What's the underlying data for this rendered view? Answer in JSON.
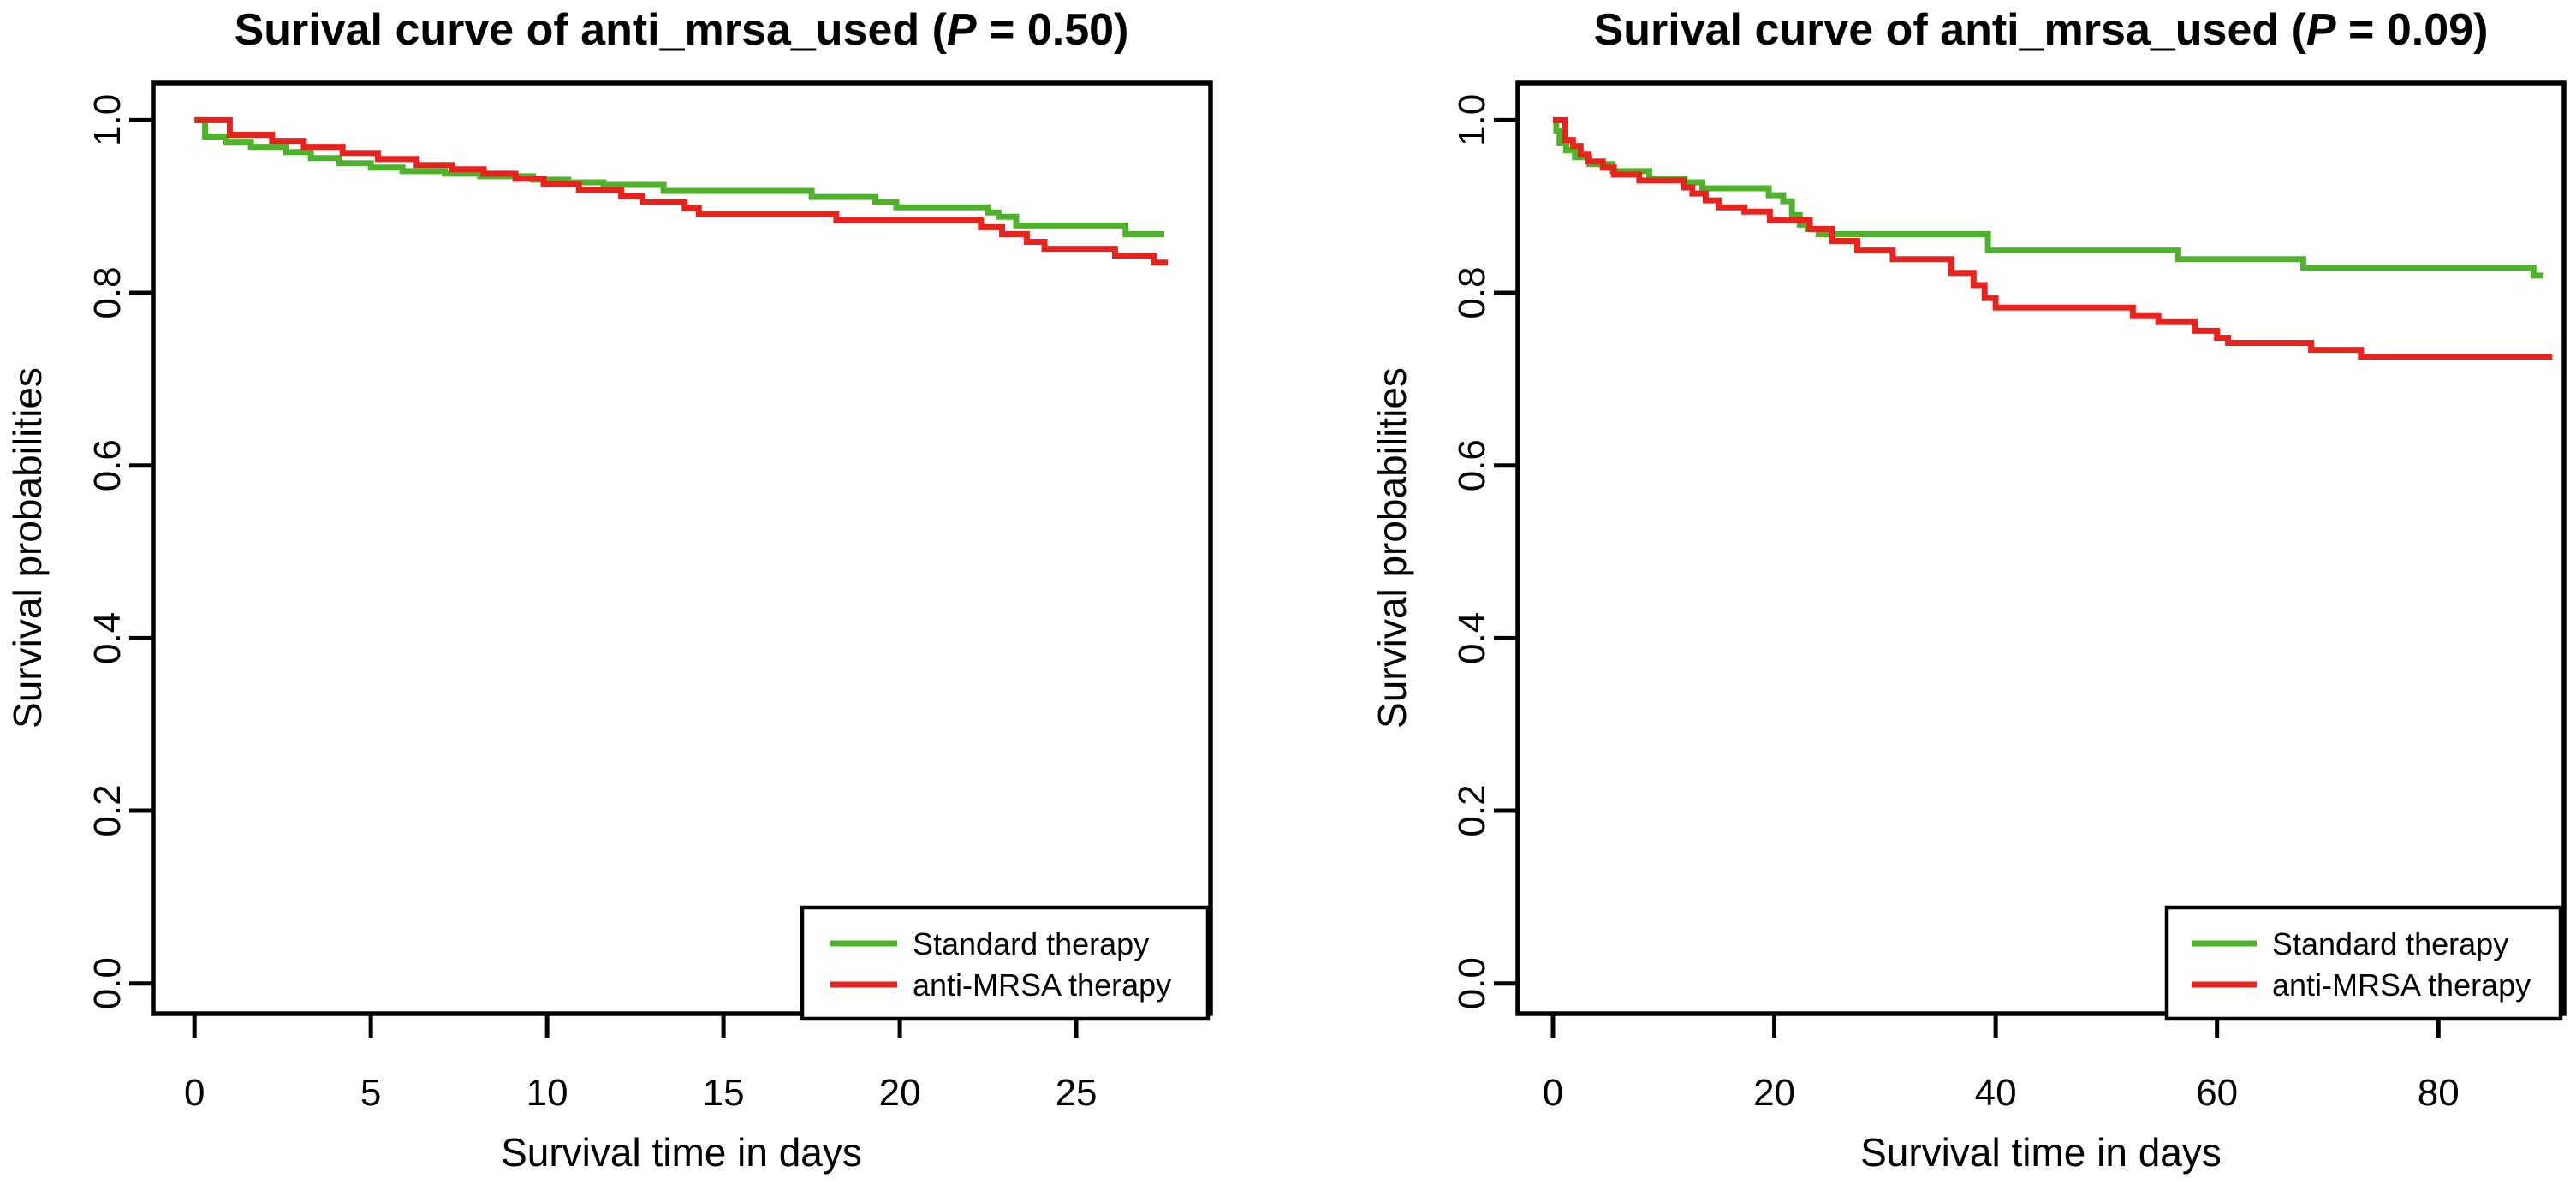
{
  "chart_data": [
    {
      "type": "line",
      "subtype": "kaplan-meier-step",
      "title": {
        "prefix": "Surival curve of anti_mrsa_used (",
        "p": "P",
        "suffix": " = 0.50)"
      },
      "xlabel": "Survival time in days",
      "ylabel": "Survival probabilities",
      "x_ticks": [
        0,
        5,
        10,
        15,
        20,
        25
      ],
      "y_ticks": [
        {
          "v": 1.0,
          "label": "1.0"
        },
        {
          "v": 0.8,
          "label": "0.8"
        },
        {
          "v": 0.6,
          "label": "0.6"
        },
        {
          "v": 0.4,
          "label": "0.4"
        },
        {
          "v": 0.2,
          "label": "0.2"
        },
        {
          "v": 0.0,
          "label": "0.0"
        }
      ],
      "xlim": [
        -1.17,
        28.81
      ],
      "ylim": [
        -0.035,
        1.043
      ],
      "grid": false,
      "legend_position": "bottom-right",
      "series": [
        {
          "name": "Standard therapy",
          "color": "#4eb32b",
          "x": [
            0,
            0.3,
            0.9,
            1.6,
            2.6,
            3.3,
            4.1,
            5.0,
            5.9,
            7.1,
            8.1,
            9.6,
            10.6,
            11.6,
            13.3,
            17.5,
            19.3,
            19.9,
            22.5,
            22.8,
            23.3,
            26.4,
            27.5
          ],
          "y": [
            1.0,
            0.981,
            0.975,
            0.969,
            0.963,
            0.956,
            0.95,
            0.945,
            0.941,
            0.938,
            0.935,
            0.931,
            0.928,
            0.925,
            0.918,
            0.911,
            0.905,
            0.899,
            0.893,
            0.888,
            0.878,
            0.868,
            0.868
          ]
        },
        {
          "name": "anti-MRSA therapy",
          "color": "#e8231e",
          "x": [
            0,
            1.0,
            2.2,
            3.1,
            4.2,
            5.2,
            6.3,
            7.3,
            8.2,
            9.1,
            9.9,
            10.9,
            12.1,
            12.7,
            13.9,
            14.3,
            18.2,
            22.3,
            22.9,
            23.6,
            24.1,
            26.1,
            27.2,
            27.6
          ],
          "y": [
            1.0,
            0.983,
            0.976,
            0.969,
            0.962,
            0.955,
            0.948,
            0.943,
            0.938,
            0.932,
            0.926,
            0.919,
            0.912,
            0.905,
            0.898,
            0.891,
            0.884,
            0.876,
            0.868,
            0.859,
            0.851,
            0.843,
            0.835,
            0.835
          ]
        }
      ]
    },
    {
      "type": "line",
      "subtype": "kaplan-meier-step",
      "title": {
        "prefix": "Surival curve of anti_mrsa_used (",
        "p": "P",
        "suffix": " = 0.09)"
      },
      "xlabel": "Survival time in days",
      "ylabel": "Survival probabilities",
      "x_ticks": [
        0,
        20,
        40,
        60,
        80
      ],
      "y_ticks": [
        {
          "v": 1.0,
          "label": "1.0"
        },
        {
          "v": 0.8,
          "label": "0.8"
        },
        {
          "v": 0.6,
          "label": "0.6"
        },
        {
          "v": 0.4,
          "label": "0.4"
        },
        {
          "v": 0.2,
          "label": "0.2"
        },
        {
          "v": 0.0,
          "label": "0.0"
        }
      ],
      "xlim": [
        -3.17,
        91.35
      ],
      "ylim": [
        -0.035,
        1.043
      ],
      "grid": false,
      "legend_position": "bottom-right",
      "series": [
        {
          "name": "Standard therapy",
          "color": "#4eb32b",
          "x": [
            0,
            0.3,
            0.6,
            1.2,
            2.0,
            3.3,
            5.4,
            8.7,
            11.9,
            13.5,
            19.5,
            20.8,
            21.6,
            22.3,
            23.0,
            24.0,
            39.3,
            56.5,
            67.8,
            88.6,
            89.5
          ],
          "y": [
            1.0,
            0.988,
            0.974,
            0.965,
            0.957,
            0.949,
            0.941,
            0.932,
            0.928,
            0.921,
            0.913,
            0.906,
            0.89,
            0.879,
            0.874,
            0.868,
            0.849,
            0.839,
            0.829,
            0.82,
            0.82
          ]
        },
        {
          "name": "anti-MRSA therapy",
          "color": "#e8231e",
          "x": [
            0,
            1.1,
            1.8,
            2.5,
            3.2,
            4.5,
            5.5,
            7.8,
            11.8,
            12.6,
            13.8,
            15.0,
            17.3,
            19.6,
            23.2,
            25.2,
            27.5,
            30.7,
            36.0,
            38.0,
            39.0,
            40.0,
            52.4,
            54.7,
            58.0,
            60.0,
            61.0,
            68.5,
            73.0,
            90.3
          ],
          "y": [
            1.0,
            0.977,
            0.97,
            0.961,
            0.952,
            0.945,
            0.937,
            0.93,
            0.922,
            0.915,
            0.907,
            0.899,
            0.894,
            0.884,
            0.874,
            0.86,
            0.849,
            0.839,
            0.823,
            0.809,
            0.794,
            0.783,
            0.773,
            0.766,
            0.756,
            0.748,
            0.742,
            0.734,
            0.726,
            0.726
          ]
        }
      ]
    }
  ]
}
